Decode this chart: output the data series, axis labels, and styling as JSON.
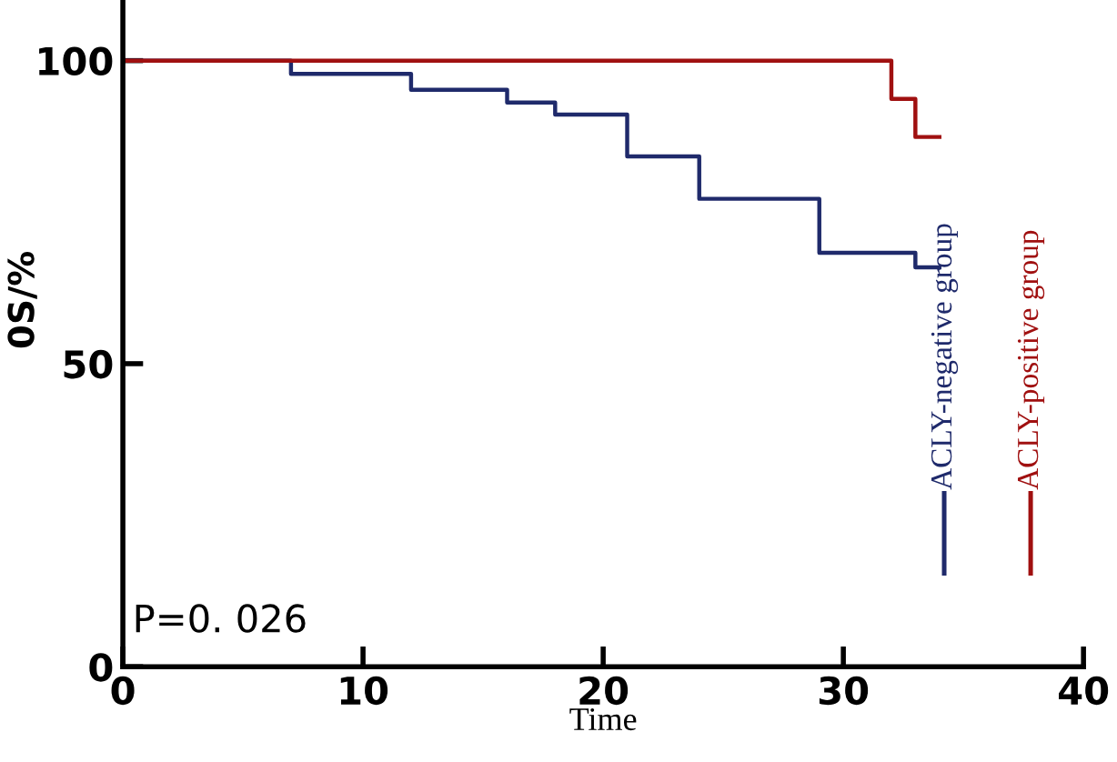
{
  "chart_data": {
    "type": "step",
    "xlabel": "Time",
    "ylabel": "0S/%",
    "xlim": [
      0,
      40
    ],
    "ylim": [
      0,
      110
    ],
    "xticks": [
      0,
      10,
      20,
      30,
      40
    ],
    "yticks": [
      0,
      50,
      100
    ],
    "grid": false,
    "legend": "right",
    "line_style": "solid",
    "marker": "none",
    "series": [
      {
        "name": "ACLY-negative group",
        "color": "#1f2a6b",
        "x": [
          0,
          7,
          12,
          16,
          18,
          21,
          24,
          29,
          33,
          34
        ],
        "values": [
          100,
          97.8,
          95.2,
          93.1,
          91.1,
          84.2,
          77.2,
          68.3,
          65.9,
          65.9
        ]
      },
      {
        "name": "ACLY-positive group",
        "color": "#a01010",
        "x": [
          0,
          32,
          33,
          34
        ],
        "values": [
          100,
          93.7,
          87.4,
          87.4
        ]
      }
    ],
    "annotations": [
      "P=0. 026"
    ]
  }
}
